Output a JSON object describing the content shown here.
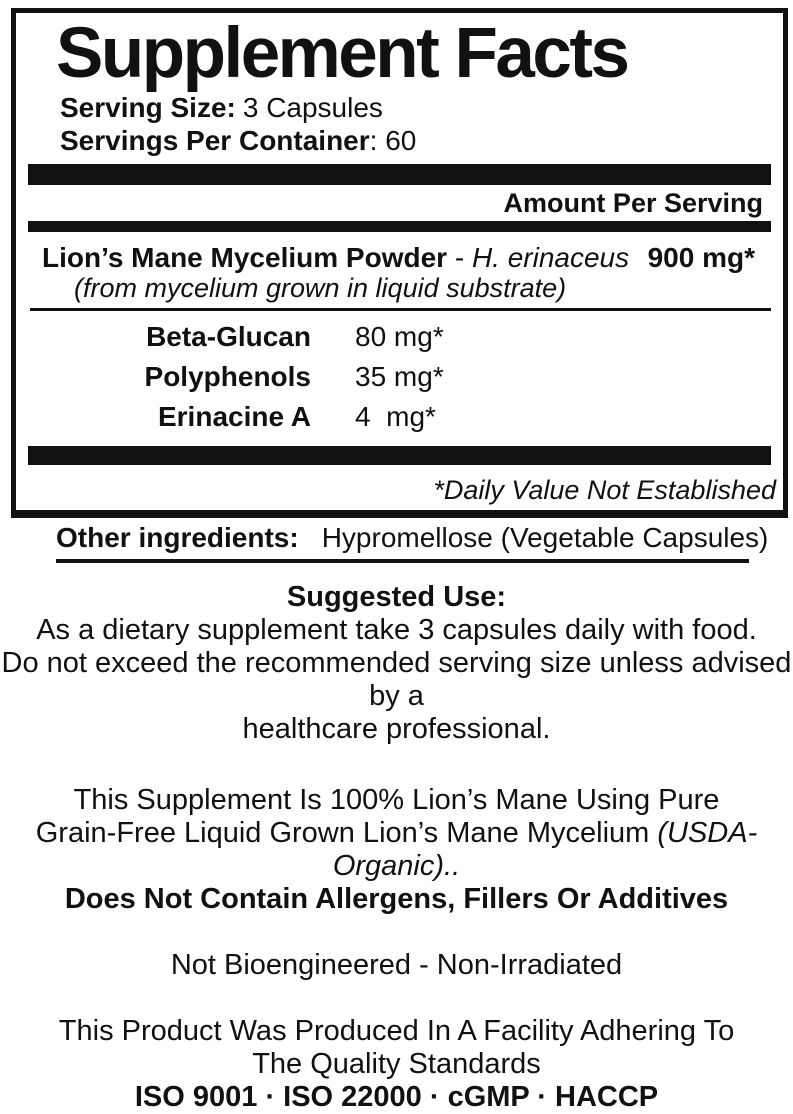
{
  "panel": {
    "title": "Supplement Facts",
    "serving_size": {
      "label": "Serving Size:",
      "value": "3 Capsules"
    },
    "servings_per_container": {
      "label": "Servings Per Container",
      "value": ": 60"
    },
    "amount_per_serving": "Amount Per Serving",
    "main_ingredient": {
      "name": "Lion’s Mane Mycelium Powder",
      "separator": " - ",
      "species": "H. erinaceus",
      "amount": "900 mg*",
      "source_note": "(from mycelium grown in liquid substrate)"
    },
    "sub_ingredients": [
      {
        "name": "Beta-Glucan",
        "amount": "80 mg*"
      },
      {
        "name": "Polyphenols",
        "amount": "35 mg*"
      },
      {
        "name": "Erinacine A",
        "amount": "4  mg*"
      }
    ],
    "daily_value_note": "*Daily Value Not Established"
  },
  "other_ingredients": {
    "label": "Other ingredients:",
    "value": "Hypromellose (Vegetable Capsules)"
  },
  "suggested_use": {
    "title": "Suggested Use:",
    "lines": [
      "As a dietary supplement take 3 capsules daily with food.",
      "Do not exceed the recommended serving size unless advised by a",
      "healthcare professional."
    ]
  },
  "claims": {
    "line1": "This Supplement Is 100% Lion’s Mane Using Pure",
    "line2_regular": "Grain-Free Liquid Grown Lion’s Mane Mycelium ",
    "line2_italic": "(USDA-Organic)..",
    "line3": "Does Not Contain Allergens, Fillers Or Additives",
    "bioengineered": "Not Bioengineered - Non-Irradiated",
    "facility_line1": "This Product Was Produced In A Facility Adhering To",
    "facility_line2": "The Quality Standards",
    "standards": "ISO 9001 ·  ISO 22000  ·  cGMP  ·  HACCP"
  },
  "colors": {
    "ink": "#111111",
    "background": "#ffffff"
  }
}
